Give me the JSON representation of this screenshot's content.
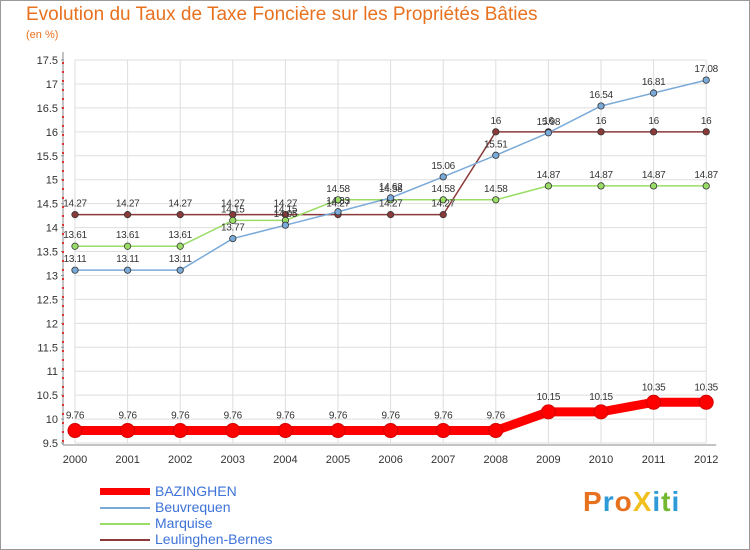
{
  "header": {
    "title": "Evolution du Taux de Taxe Foncière sur les Propriétés Bâties",
    "unit": "(en %)"
  },
  "logo": {
    "text": "ProXiti",
    "letters": [
      {
        "ch": "P",
        "color": "#e8711f"
      },
      {
        "ch": "r",
        "color": "#2f9ad8"
      },
      {
        "ch": "o",
        "color": "#e8711f"
      },
      {
        "ch": "X",
        "color": "#f2c01e"
      },
      {
        "ch": "i",
        "color": "#2f9ad8"
      },
      {
        "ch": "t",
        "color": "#72b832"
      },
      {
        "ch": "i",
        "color": "#2f9ad8"
      }
    ]
  },
  "chart_data": {
    "type": "line",
    "title": "Evolution du Taux de Taxe Foncière sur les Propriétés Bâties",
    "ylabel": "(en %)",
    "xlabel": "",
    "categories": [
      "2000",
      "2001",
      "2002",
      "2003",
      "2004",
      "2005",
      "2006",
      "2007",
      "2008",
      "2009",
      "2010",
      "2011",
      "2012"
    ],
    "ylim": [
      9.5,
      17.5
    ],
    "yticks": [
      "9.5",
      "10",
      "10.5",
      "11",
      "11.5",
      "12",
      "12.5",
      "13",
      "13.5",
      "14",
      "14.5",
      "15",
      "15.5",
      "16",
      "16.5",
      "17",
      "17.5"
    ],
    "legend_position": "bottom-left",
    "series": [
      {
        "name": "BAZINGHEN",
        "color": "#ff0000",
        "values": [
          9.76,
          9.76,
          9.76,
          9.76,
          9.76,
          9.76,
          9.76,
          9.76,
          9.76,
          10.15,
          10.15,
          10.35,
          10.35
        ],
        "labels": [
          "9.76",
          "9.76",
          "9.76",
          "9.76",
          "9.76",
          "9.76",
          "9.76",
          "9.76",
          "9.76",
          "10.15",
          "10.15",
          "10.35",
          "10.35"
        ]
      },
      {
        "name": "Beuvrequen",
        "color": "#7aaad8",
        "values": [
          13.11,
          13.11,
          13.11,
          13.77,
          14.05,
          14.33,
          14.62,
          15.06,
          15.51,
          15.98,
          16.54,
          16.81,
          17.08
        ],
        "labels": [
          "13.11",
          "13.11",
          "13.11",
          "13.77",
          "14.05",
          "14.33",
          "14.62",
          "15.06",
          "15.51",
          "15.98",
          "16.54",
          "16.81",
          "17.08"
        ]
      },
      {
        "name": "Marquise",
        "color": "#99dd66",
        "values": [
          13.61,
          13.61,
          13.61,
          14.15,
          14.15,
          14.58,
          14.58,
          14.58,
          14.58,
          14.87,
          14.87,
          14.87,
          14.87
        ],
        "labels": [
          "13.61",
          "13.61",
          "13.61",
          "14.15",
          "14.15",
          "14.58",
          "14.58",
          "14.58",
          "14.58",
          "14.87",
          "14.87",
          "14.87",
          "14.87"
        ]
      },
      {
        "name": "Leulinghen-Bernes",
        "color": "#8b3a3a",
        "values": [
          14.27,
          14.27,
          14.27,
          14.27,
          14.27,
          14.27,
          14.27,
          14.27,
          16,
          16,
          16,
          16,
          16
        ],
        "labels": [
          "14.27",
          "14.27",
          "14.27",
          "14.27",
          "14.27",
          "14.27",
          "14.27",
          "14.27",
          "16",
          "16",
          "16",
          "16",
          "16"
        ]
      }
    ]
  }
}
